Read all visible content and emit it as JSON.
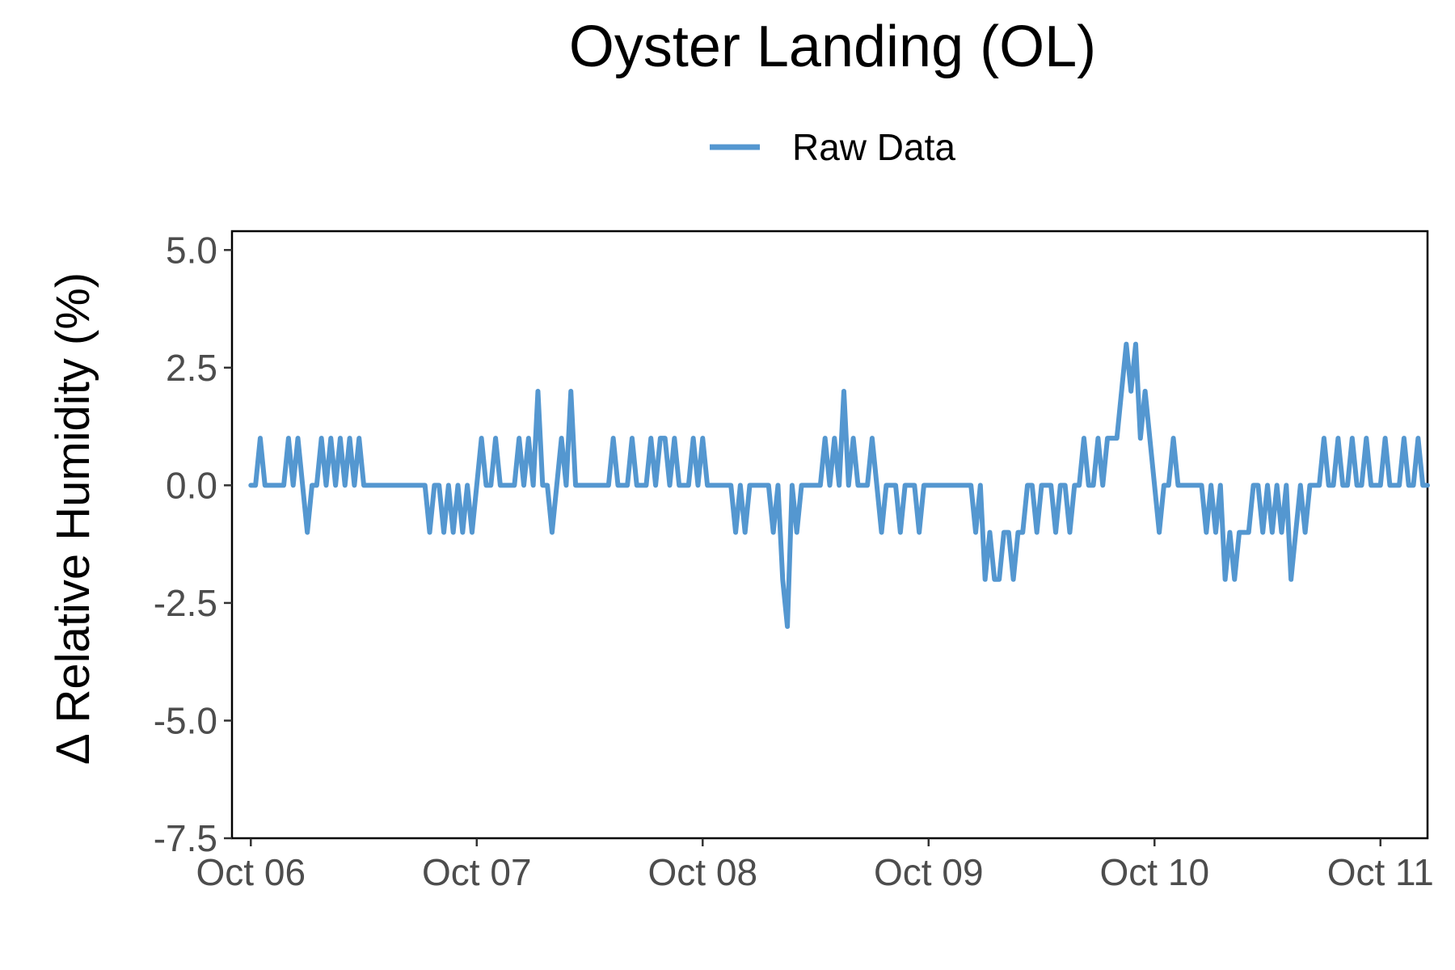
{
  "chart_data": {
    "type": "line",
    "title": "Oyster Landing (OL)",
    "xlabel": "",
    "ylabel": "Δ Relative Humidity (%)",
    "x_axis_type": "date",
    "xlim": [
      "2023-10-05T22:00",
      "2023-10-11T05:00"
    ],
    "ylim": [
      -7.5,
      5.4
    ],
    "x_ticks": [
      {
        "value": "2023-10-06T00:00",
        "label": "Oct 06"
      },
      {
        "value": "2023-10-07T00:00",
        "label": "Oct 07"
      },
      {
        "value": "2023-10-08T00:00",
        "label": "Oct 08"
      },
      {
        "value": "2023-10-09T00:00",
        "label": "Oct 09"
      },
      {
        "value": "2023-10-10T00:00",
        "label": "Oct 10"
      },
      {
        "value": "2023-10-11T00:00",
        "label": "Oct 11"
      }
    ],
    "y_ticks": [
      {
        "value": 5.0,
        "label": "5.0"
      },
      {
        "value": 2.5,
        "label": "2.5"
      },
      {
        "value": 0.0,
        "label": "0.0"
      },
      {
        "value": -2.5,
        "label": "-2.5"
      },
      {
        "value": -5.0,
        "label": "-5.0"
      },
      {
        "value": -7.5,
        "label": "-7.5"
      }
    ],
    "grid": false,
    "legend_position": "top",
    "series": [
      {
        "name": "Raw Data",
        "color": "#5497d0",
        "points": [
          [
            "2023-10-06T00:00",
            0
          ],
          [
            "2023-10-06T00:30",
            0
          ],
          [
            "2023-10-06T01:00",
            1
          ],
          [
            "2023-10-06T01:30",
            0
          ],
          [
            "2023-10-06T02:00",
            0
          ],
          [
            "2023-10-06T02:30",
            0
          ],
          [
            "2023-10-06T03:00",
            0
          ],
          [
            "2023-10-06T03:30",
            0
          ],
          [
            "2023-10-06T04:00",
            1
          ],
          [
            "2023-10-06T04:30",
            0
          ],
          [
            "2023-10-06T05:00",
            1
          ],
          [
            "2023-10-06T05:30",
            0
          ],
          [
            "2023-10-06T06:00",
            -1
          ],
          [
            "2023-10-06T06:30",
            0
          ],
          [
            "2023-10-06T07:00",
            0
          ],
          [
            "2023-10-06T07:30",
            1
          ],
          [
            "2023-10-06T08:00",
            0
          ],
          [
            "2023-10-06T08:30",
            1
          ],
          [
            "2023-10-06T09:00",
            0
          ],
          [
            "2023-10-06T09:30",
            1
          ],
          [
            "2023-10-06T10:00",
            0
          ],
          [
            "2023-10-06T10:30",
            1
          ],
          [
            "2023-10-06T11:00",
            0
          ],
          [
            "2023-10-06T11:30",
            1
          ],
          [
            "2023-10-06T12:00",
            0
          ],
          [
            "2023-10-06T12:30",
            0
          ],
          [
            "2023-10-06T13:00",
            0
          ],
          [
            "2023-10-06T13:30",
            0
          ],
          [
            "2023-10-06T14:00",
            0
          ],
          [
            "2023-10-06T14:30",
            0
          ],
          [
            "2023-10-06T15:00",
            0
          ],
          [
            "2023-10-06T15:30",
            0
          ],
          [
            "2023-10-06T16:00",
            0
          ],
          [
            "2023-10-06T16:30",
            0
          ],
          [
            "2023-10-06T17:00",
            0
          ],
          [
            "2023-10-06T17:30",
            0
          ],
          [
            "2023-10-06T18:00",
            0
          ],
          [
            "2023-10-06T18:30",
            0
          ],
          [
            "2023-10-06T19:00",
            -1
          ],
          [
            "2023-10-06T19:30",
            0
          ],
          [
            "2023-10-06T20:00",
            0
          ],
          [
            "2023-10-06T20:30",
            -1
          ],
          [
            "2023-10-06T21:00",
            0
          ],
          [
            "2023-10-06T21:30",
            -1
          ],
          [
            "2023-10-06T22:00",
            0
          ],
          [
            "2023-10-06T22:30",
            -1
          ],
          [
            "2023-10-06T23:00",
            0
          ],
          [
            "2023-10-06T23:30",
            -1
          ],
          [
            "2023-10-07T00:00",
            0
          ],
          [
            "2023-10-07T00:30",
            1
          ],
          [
            "2023-10-07T01:00",
            0
          ],
          [
            "2023-10-07T01:30",
            0
          ],
          [
            "2023-10-07T02:00",
            1
          ],
          [
            "2023-10-07T02:30",
            0
          ],
          [
            "2023-10-07T03:00",
            0
          ],
          [
            "2023-10-07T03:30",
            0
          ],
          [
            "2023-10-07T04:00",
            0
          ],
          [
            "2023-10-07T04:30",
            1
          ],
          [
            "2023-10-07T05:00",
            0
          ],
          [
            "2023-10-07T05:30",
            1
          ],
          [
            "2023-10-07T06:00",
            0
          ],
          [
            "2023-10-07T06:30",
            2
          ],
          [
            "2023-10-07T07:00",
            0
          ],
          [
            "2023-10-07T07:30",
            0
          ],
          [
            "2023-10-07T08:00",
            -1
          ],
          [
            "2023-10-07T08:30",
            0
          ],
          [
            "2023-10-07T09:00",
            1
          ],
          [
            "2023-10-07T09:30",
            0
          ],
          [
            "2023-10-07T10:00",
            2
          ],
          [
            "2023-10-07T10:30",
            0
          ],
          [
            "2023-10-07T11:00",
            0
          ],
          [
            "2023-10-07T11:30",
            0
          ],
          [
            "2023-10-07T12:00",
            0
          ],
          [
            "2023-10-07T12:30",
            0
          ],
          [
            "2023-10-07T13:00",
            0
          ],
          [
            "2023-10-07T13:30",
            0
          ],
          [
            "2023-10-07T14:00",
            0
          ],
          [
            "2023-10-07T14:30",
            1
          ],
          [
            "2023-10-07T15:00",
            0
          ],
          [
            "2023-10-07T15:30",
            0
          ],
          [
            "2023-10-07T16:00",
            0
          ],
          [
            "2023-10-07T16:30",
            1
          ],
          [
            "2023-10-07T17:00",
            0
          ],
          [
            "2023-10-07T17:30",
            0
          ],
          [
            "2023-10-07T18:00",
            0
          ],
          [
            "2023-10-07T18:30",
            1
          ],
          [
            "2023-10-07T19:00",
            0
          ],
          [
            "2023-10-07T19:30",
            1
          ],
          [
            "2023-10-07T20:00",
            1
          ],
          [
            "2023-10-07T20:30",
            0
          ],
          [
            "2023-10-07T21:00",
            1
          ],
          [
            "2023-10-07T21:30",
            0
          ],
          [
            "2023-10-07T22:00",
            0
          ],
          [
            "2023-10-07T22:30",
            0
          ],
          [
            "2023-10-07T23:00",
            1
          ],
          [
            "2023-10-07T23:30",
            0
          ],
          [
            "2023-10-08T00:00",
            1
          ],
          [
            "2023-10-08T00:30",
            0
          ],
          [
            "2023-10-08T01:00",
            0
          ],
          [
            "2023-10-08T01:30",
            0
          ],
          [
            "2023-10-08T02:00",
            0
          ],
          [
            "2023-10-08T02:30",
            0
          ],
          [
            "2023-10-08T03:00",
            0
          ],
          [
            "2023-10-08T03:30",
            -1
          ],
          [
            "2023-10-08T04:00",
            0
          ],
          [
            "2023-10-08T04:30",
            -1
          ],
          [
            "2023-10-08T05:00",
            0
          ],
          [
            "2023-10-08T05:30",
            0
          ],
          [
            "2023-10-08T06:00",
            0
          ],
          [
            "2023-10-08T06:30",
            0
          ],
          [
            "2023-10-08T07:00",
            0
          ],
          [
            "2023-10-08T07:30",
            -1
          ],
          [
            "2023-10-08T08:00",
            0
          ],
          [
            "2023-10-08T08:30",
            -2
          ],
          [
            "2023-10-08T09:00",
            -3
          ],
          [
            "2023-10-08T09:30",
            0
          ],
          [
            "2023-10-08T10:00",
            -1
          ],
          [
            "2023-10-08T10:30",
            0
          ],
          [
            "2023-10-08T11:00",
            0
          ],
          [
            "2023-10-08T11:30",
            0
          ],
          [
            "2023-10-08T12:00",
            0
          ],
          [
            "2023-10-08T12:30",
            0
          ],
          [
            "2023-10-08T13:00",
            1
          ],
          [
            "2023-10-08T13:30",
            0
          ],
          [
            "2023-10-08T14:00",
            1
          ],
          [
            "2023-10-08T14:30",
            0
          ],
          [
            "2023-10-08T15:00",
            2
          ],
          [
            "2023-10-08T15:30",
            0
          ],
          [
            "2023-10-08T16:00",
            1
          ],
          [
            "2023-10-08T16:30",
            0
          ],
          [
            "2023-10-08T17:00",
            0
          ],
          [
            "2023-10-08T17:30",
            0
          ],
          [
            "2023-10-08T18:00",
            1
          ],
          [
            "2023-10-08T18:30",
            0
          ],
          [
            "2023-10-08T19:00",
            -1
          ],
          [
            "2023-10-08T19:30",
            0
          ],
          [
            "2023-10-08T20:00",
            0
          ],
          [
            "2023-10-08T20:30",
            0
          ],
          [
            "2023-10-08T21:00",
            -1
          ],
          [
            "2023-10-08T21:30",
            0
          ],
          [
            "2023-10-08T22:00",
            0
          ],
          [
            "2023-10-08T22:30",
            0
          ],
          [
            "2023-10-08T23:00",
            -1
          ],
          [
            "2023-10-08T23:30",
            0
          ],
          [
            "2023-10-09T00:00",
            0
          ],
          [
            "2023-10-09T00:30",
            0
          ],
          [
            "2023-10-09T01:00",
            0
          ],
          [
            "2023-10-09T01:30",
            0
          ],
          [
            "2023-10-09T02:00",
            0
          ],
          [
            "2023-10-09T02:30",
            0
          ],
          [
            "2023-10-09T03:00",
            0
          ],
          [
            "2023-10-09T03:30",
            0
          ],
          [
            "2023-10-09T04:00",
            0
          ],
          [
            "2023-10-09T04:30",
            0
          ],
          [
            "2023-10-09T05:00",
            -1
          ],
          [
            "2023-10-09T05:30",
            0
          ],
          [
            "2023-10-09T06:00",
            -2
          ],
          [
            "2023-10-09T06:30",
            -1
          ],
          [
            "2023-10-09T07:00",
            -2
          ],
          [
            "2023-10-09T07:30",
            -2
          ],
          [
            "2023-10-09T08:00",
            -1
          ],
          [
            "2023-10-09T08:30",
            -1
          ],
          [
            "2023-10-09T09:00",
            -2
          ],
          [
            "2023-10-09T09:30",
            -1
          ],
          [
            "2023-10-09T10:00",
            -1
          ],
          [
            "2023-10-09T10:30",
            0
          ],
          [
            "2023-10-09T11:00",
            0
          ],
          [
            "2023-10-09T11:30",
            -1
          ],
          [
            "2023-10-09T12:00",
            0
          ],
          [
            "2023-10-09T12:30",
            0
          ],
          [
            "2023-10-09T13:00",
            0
          ],
          [
            "2023-10-09T13:30",
            -1
          ],
          [
            "2023-10-09T14:00",
            0
          ],
          [
            "2023-10-09T14:30",
            0
          ],
          [
            "2023-10-09T15:00",
            -1
          ],
          [
            "2023-10-09T15:30",
            0
          ],
          [
            "2023-10-09T16:00",
            0
          ],
          [
            "2023-10-09T16:30",
            1
          ],
          [
            "2023-10-09T17:00",
            0
          ],
          [
            "2023-10-09T17:30",
            0
          ],
          [
            "2023-10-09T18:00",
            1
          ],
          [
            "2023-10-09T18:30",
            0
          ],
          [
            "2023-10-09T19:00",
            1
          ],
          [
            "2023-10-09T19:30",
            1
          ],
          [
            "2023-10-09T20:00",
            1
          ],
          [
            "2023-10-09T20:30",
            2
          ],
          [
            "2023-10-09T21:00",
            3
          ],
          [
            "2023-10-09T21:30",
            2
          ],
          [
            "2023-10-09T22:00",
            3
          ],
          [
            "2023-10-09T22:30",
            1
          ],
          [
            "2023-10-09T23:00",
            2
          ],
          [
            "2023-10-09T23:30",
            1
          ],
          [
            "2023-10-10T00:00",
            0
          ],
          [
            "2023-10-10T00:30",
            -1
          ],
          [
            "2023-10-10T01:00",
            0
          ],
          [
            "2023-10-10T01:30",
            0
          ],
          [
            "2023-10-10T02:00",
            1
          ],
          [
            "2023-10-10T02:30",
            0
          ],
          [
            "2023-10-10T03:00",
            0
          ],
          [
            "2023-10-10T03:30",
            0
          ],
          [
            "2023-10-10T04:00",
            0
          ],
          [
            "2023-10-10T04:30",
            0
          ],
          [
            "2023-10-10T05:00",
            0
          ],
          [
            "2023-10-10T05:30",
            -1
          ],
          [
            "2023-10-10T06:00",
            0
          ],
          [
            "2023-10-10T06:30",
            -1
          ],
          [
            "2023-10-10T07:00",
            0
          ],
          [
            "2023-10-10T07:30",
            -2
          ],
          [
            "2023-10-10T08:00",
            -1
          ],
          [
            "2023-10-10T08:30",
            -2
          ],
          [
            "2023-10-10T09:00",
            -1
          ],
          [
            "2023-10-10T09:30",
            -1
          ],
          [
            "2023-10-10T10:00",
            -1
          ],
          [
            "2023-10-10T10:30",
            0
          ],
          [
            "2023-10-10T11:00",
            0
          ],
          [
            "2023-10-10T11:30",
            -1
          ],
          [
            "2023-10-10T12:00",
            0
          ],
          [
            "2023-10-10T12:30",
            -1
          ],
          [
            "2023-10-10T13:00",
            0
          ],
          [
            "2023-10-10T13:30",
            -1
          ],
          [
            "2023-10-10T14:00",
            0
          ],
          [
            "2023-10-10T14:30",
            -2
          ],
          [
            "2023-10-10T15:00",
            -1
          ],
          [
            "2023-10-10T15:30",
            0
          ],
          [
            "2023-10-10T16:00",
            -1
          ],
          [
            "2023-10-10T16:30",
            0
          ],
          [
            "2023-10-10T17:00",
            0
          ],
          [
            "2023-10-10T17:30",
            0
          ],
          [
            "2023-10-10T18:00",
            1
          ],
          [
            "2023-10-10T18:30",
            0
          ],
          [
            "2023-10-10T19:00",
            0
          ],
          [
            "2023-10-10T19:30",
            1
          ],
          [
            "2023-10-10T20:00",
            0
          ],
          [
            "2023-10-10T20:30",
            0
          ],
          [
            "2023-10-10T21:00",
            1
          ],
          [
            "2023-10-10T21:30",
            0
          ],
          [
            "2023-10-10T22:00",
            0
          ],
          [
            "2023-10-10T22:30",
            1
          ],
          [
            "2023-10-10T23:00",
            0
          ],
          [
            "2023-10-10T23:30",
            0
          ],
          [
            "2023-10-11T00:00",
            0
          ],
          [
            "2023-10-11T00:30",
            1
          ],
          [
            "2023-10-11T01:00",
            0
          ],
          [
            "2023-10-11T01:30",
            0
          ],
          [
            "2023-10-11T02:00",
            0
          ],
          [
            "2023-10-11T02:30",
            1
          ],
          [
            "2023-10-11T03:00",
            0
          ],
          [
            "2023-10-11T03:30",
            0
          ],
          [
            "2023-10-11T04:00",
            1
          ],
          [
            "2023-10-11T04:30",
            0
          ],
          [
            "2023-10-11T05:00",
            0
          ]
        ]
      }
    ]
  }
}
